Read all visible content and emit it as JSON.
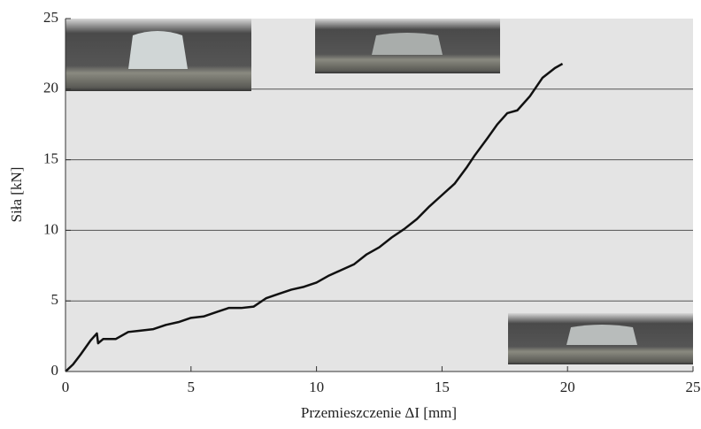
{
  "chart_data": {
    "type": "line",
    "x_label": "Przemieszczenie ΔI [mm]",
    "y_label": "Siła [kN]",
    "xlim": [
      0,
      25
    ],
    "xticks": [
      0,
      5,
      10,
      15,
      20,
      25
    ],
    "ylim": [
      0,
      25
    ],
    "yticks": [
      0,
      5,
      10,
      15,
      20,
      25
    ],
    "grid": true,
    "series": [
      {
        "color": "#111111",
        "x": [
          0,
          0.3,
          0.6,
          1.0,
          1.25,
          1.3,
          1.5,
          2.0,
          2.5,
          3.0,
          3.5,
          4.0,
          4.5,
          5.0,
          5.5,
          6.0,
          6.5,
          7.0,
          7.5,
          8.0,
          8.5,
          9.0,
          9.5,
          10.0,
          10.5,
          11.0,
          11.5,
          12.0,
          12.5,
          13.0,
          13.5,
          14.0,
          14.5,
          15.0,
          15.5,
          16.0,
          16.3,
          16.8,
          17.2,
          17.6,
          18.0,
          18.5,
          19.0,
          19.5,
          19.8
        ],
        "values": [
          0,
          0.5,
          1.2,
          2.2,
          2.7,
          2.0,
          2.3,
          2.3,
          2.8,
          2.9,
          3.0,
          3.3,
          3.5,
          3.8,
          3.9,
          4.2,
          4.5,
          4.5,
          4.6,
          5.2,
          5.5,
          5.8,
          6.0,
          6.3,
          6.8,
          7.2,
          7.6,
          8.3,
          8.8,
          9.5,
          10.1,
          10.8,
          11.7,
          12.5,
          13.3,
          14.5,
          15.3,
          16.5,
          17.5,
          18.3,
          18.5,
          19.5,
          20.8,
          21.5,
          21.8
        ]
      }
    ]
  }
}
